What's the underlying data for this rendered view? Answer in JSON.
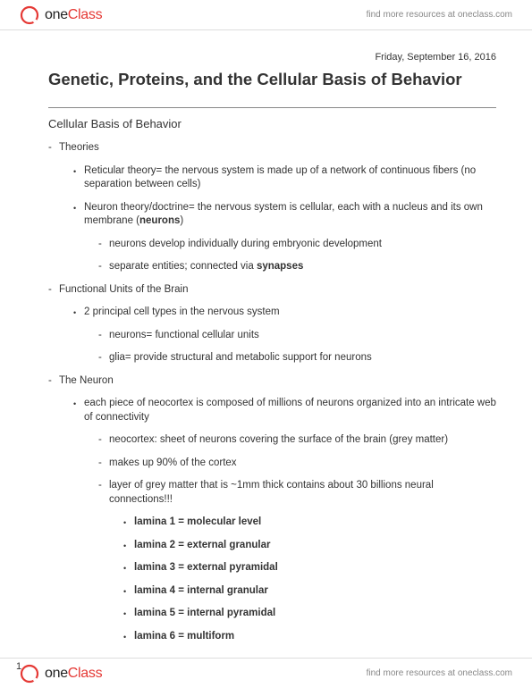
{
  "brand": {
    "one": "one",
    "class": "Class"
  },
  "tagline_prefix": "find more resources at ",
  "tagline_link": "oneclass.com",
  "date": "Friday, September 16, 2016",
  "title": "Genetic, Proteins, and the Cellular Basis of Behavior",
  "subtitle": "Cellular Basis of Behavior",
  "page_number": "1",
  "outline": [
    {
      "html": "Theories",
      "children": [
        {
          "html": "Reticular theory= the nervous system is made up of a network of continuous fibers (no separation between cells)"
        },
        {
          "html": "Neuron theory/doctrine= the nervous system is cellular, each with a nucleus and its own membrane (<strong>neurons</strong>)",
          "children": [
            {
              "html": "neurons develop individually during embryonic development"
            },
            {
              "html": "separate entities; connected via <strong>synapses</strong>"
            }
          ]
        }
      ]
    },
    {
      "html": "Functional Units of the Brain",
      "children": [
        {
          "html": "2 principal cell types in the nervous system",
          "children": [
            {
              "html": "neurons= functional cellular units"
            },
            {
              "html": "glia= provide structural and metabolic support for neurons"
            }
          ]
        }
      ]
    },
    {
      "html": "The Neuron",
      "children": [
        {
          "html": "each piece of neocortex is composed of millions of neurons organized into an intricate web of connectivity",
          "children": [
            {
              "html": "neocortex: sheet of neurons covering the surface of the brain (grey matter)"
            },
            {
              "html": "makes up 90% of the cortex"
            },
            {
              "html": "layer of grey matter that is ~1mm thick contains about 30 billions neural connections!!!",
              "children": [
                {
                  "html": "<strong>lamina 1 = molecular level</strong>"
                },
                {
                  "html": "<strong>lamina 2 = external granular</strong>"
                },
                {
                  "html": "<strong>lamina 3 = external pyramidal</strong>"
                },
                {
                  "html": "<strong>lamina 4 = internal granular</strong>"
                },
                {
                  "html": "<strong>lamina 5 = internal pyramidal</strong>"
                },
                {
                  "html": "<strong>lamina 6 = multiform</strong>"
                }
              ]
            }
          ]
        }
      ]
    }
  ]
}
